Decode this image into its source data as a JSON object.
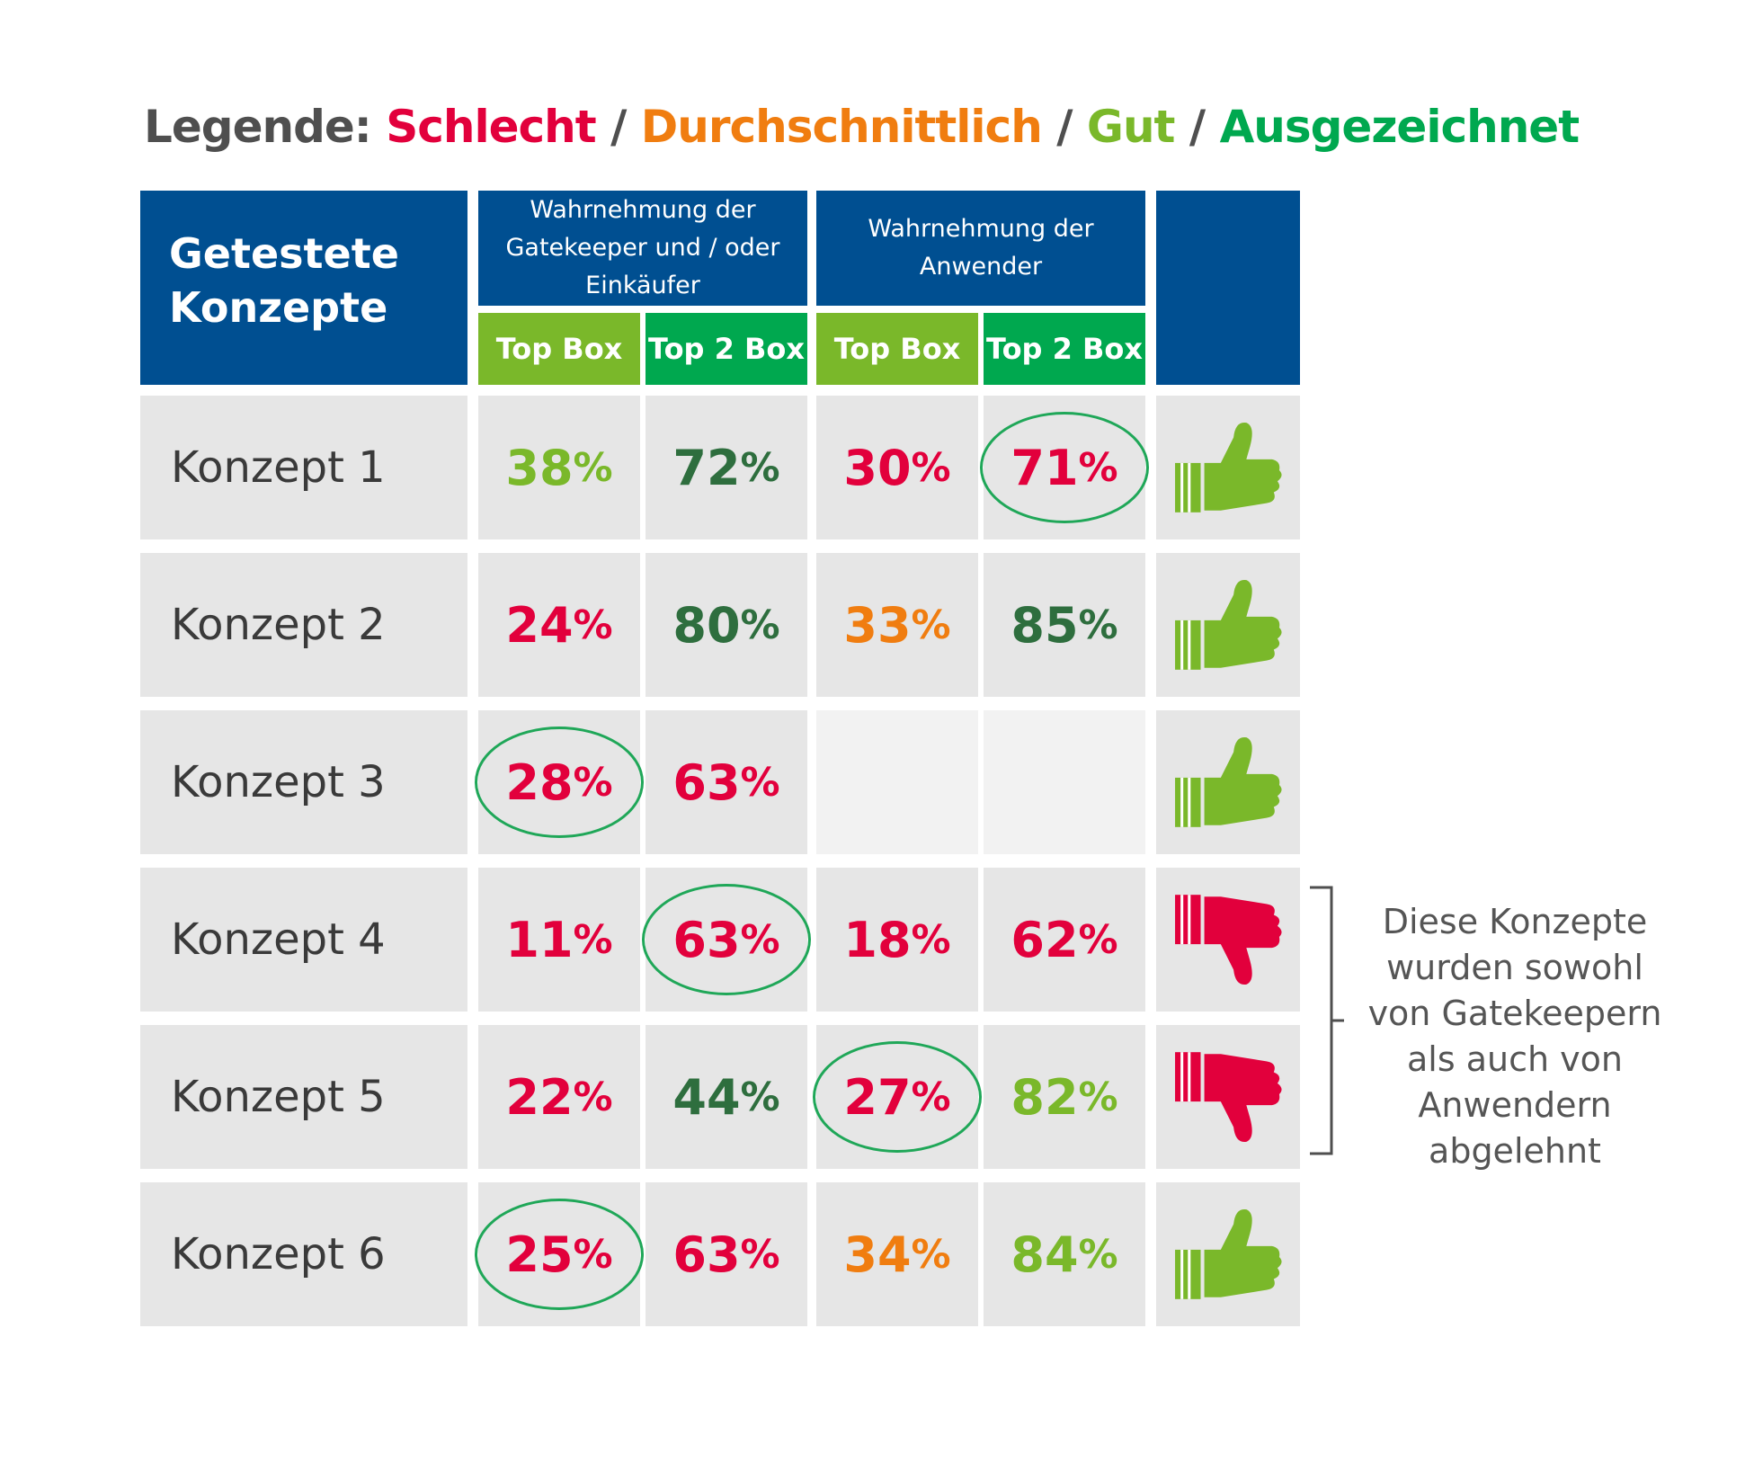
{
  "colors": {
    "header_blue": "#004f91",
    "subheader_topbox": "#7ab82a",
    "subheader_top2box": "#00a84f",
    "cell_bg": "#e6e6e6",
    "highlight_ring": "#1fa758",
    "thumb_up": "#7ab82a",
    "thumb_down": "#e2003c"
  },
  "legend": {
    "prefix": "Legende:",
    "separator": "/",
    "items": [
      {
        "label": "Schlecht",
        "color": "#e2003c"
      },
      {
        "label": "Durchschnittlich",
        "color": "#f07d10"
      },
      {
        "label": "Gut",
        "color": "#7ab82a"
      },
      {
        "label": "Ausgezeichnet",
        "color": "#00a84f"
      }
    ],
    "prefix_color": "#4f4f4f"
  },
  "chart_data": {
    "type": "table",
    "header": {
      "row_label": "Getestete Konzepte",
      "groups": [
        {
          "label": "Wahrnehmung der Gatekeeper und / oder Einkäufer",
          "lines": [
            "Wahrnehmung der",
            "Gatekeeper und / oder",
            "Einkäufer"
          ],
          "columns": [
            "Top Box",
            "Top 2 Box"
          ]
        },
        {
          "label": "Wahrnehmung der Anwender",
          "lines": [
            "Wahrnehmung der",
            "Anwender"
          ],
          "columns": [
            "Top Box",
            "Top 2 Box"
          ]
        }
      ]
    },
    "rows": [
      {
        "name": "Konzept 1",
        "values": [
          38,
          72,
          30,
          71
        ],
        "ratings": [
          "Gut",
          "Ausgezeichnet",
          "Schlecht",
          "Schlecht"
        ],
        "circled": [
          false,
          false,
          false,
          true
        ],
        "verdict": "thumbs-up"
      },
      {
        "name": "Konzept 2",
        "values": [
          24,
          80,
          33,
          85
        ],
        "ratings": [
          "Schlecht",
          "Ausgezeichnet",
          "Durchschnittlich",
          "Ausgezeichnet"
        ],
        "circled": [
          false,
          false,
          false,
          false
        ],
        "verdict": "thumbs-up"
      },
      {
        "name": "Konzept 3",
        "values": [
          28,
          63,
          null,
          null
        ],
        "ratings": [
          "Schlecht",
          "Schlecht",
          null,
          null
        ],
        "circled": [
          true,
          false,
          false,
          false
        ],
        "verdict": "thumbs-up"
      },
      {
        "name": "Konzept 4",
        "values": [
          11,
          63,
          18,
          62
        ],
        "ratings": [
          "Schlecht",
          "Schlecht",
          "Schlecht",
          "Schlecht"
        ],
        "circled": [
          false,
          true,
          false,
          false
        ],
        "verdict": "thumbs-down"
      },
      {
        "name": "Konzept 5",
        "values": [
          22,
          44,
          27,
          82
        ],
        "ratings": [
          "Schlecht",
          "Ausgezeichnet",
          "Schlecht",
          "Gut"
        ],
        "circled": [
          false,
          false,
          true,
          false
        ],
        "verdict": "thumbs-down"
      },
      {
        "name": "Konzept 6",
        "values": [
          25,
          63,
          34,
          84
        ],
        "ratings": [
          "Schlecht",
          "Schlecht",
          "Durchschnittlich",
          "Gut"
        ],
        "circled": [
          true,
          false,
          false,
          false
        ],
        "verdict": "thumbs-up"
      }
    ],
    "value_suffix": "%",
    "rating_colors": {
      "Schlecht": "#e2003c",
      "Durchschnittlich": "#f07d10",
      "Gut": "#7ab82a",
      "Ausgezeichnet": "#2e6e3e"
    }
  },
  "annotation": {
    "lines": [
      "Diese Konzepte",
      "wurden sowohl",
      "von Gatekeepern",
      "als auch von",
      "Anwendern",
      "abgelehnt"
    ],
    "applies_to": [
      "Konzept 4",
      "Konzept 5"
    ]
  }
}
